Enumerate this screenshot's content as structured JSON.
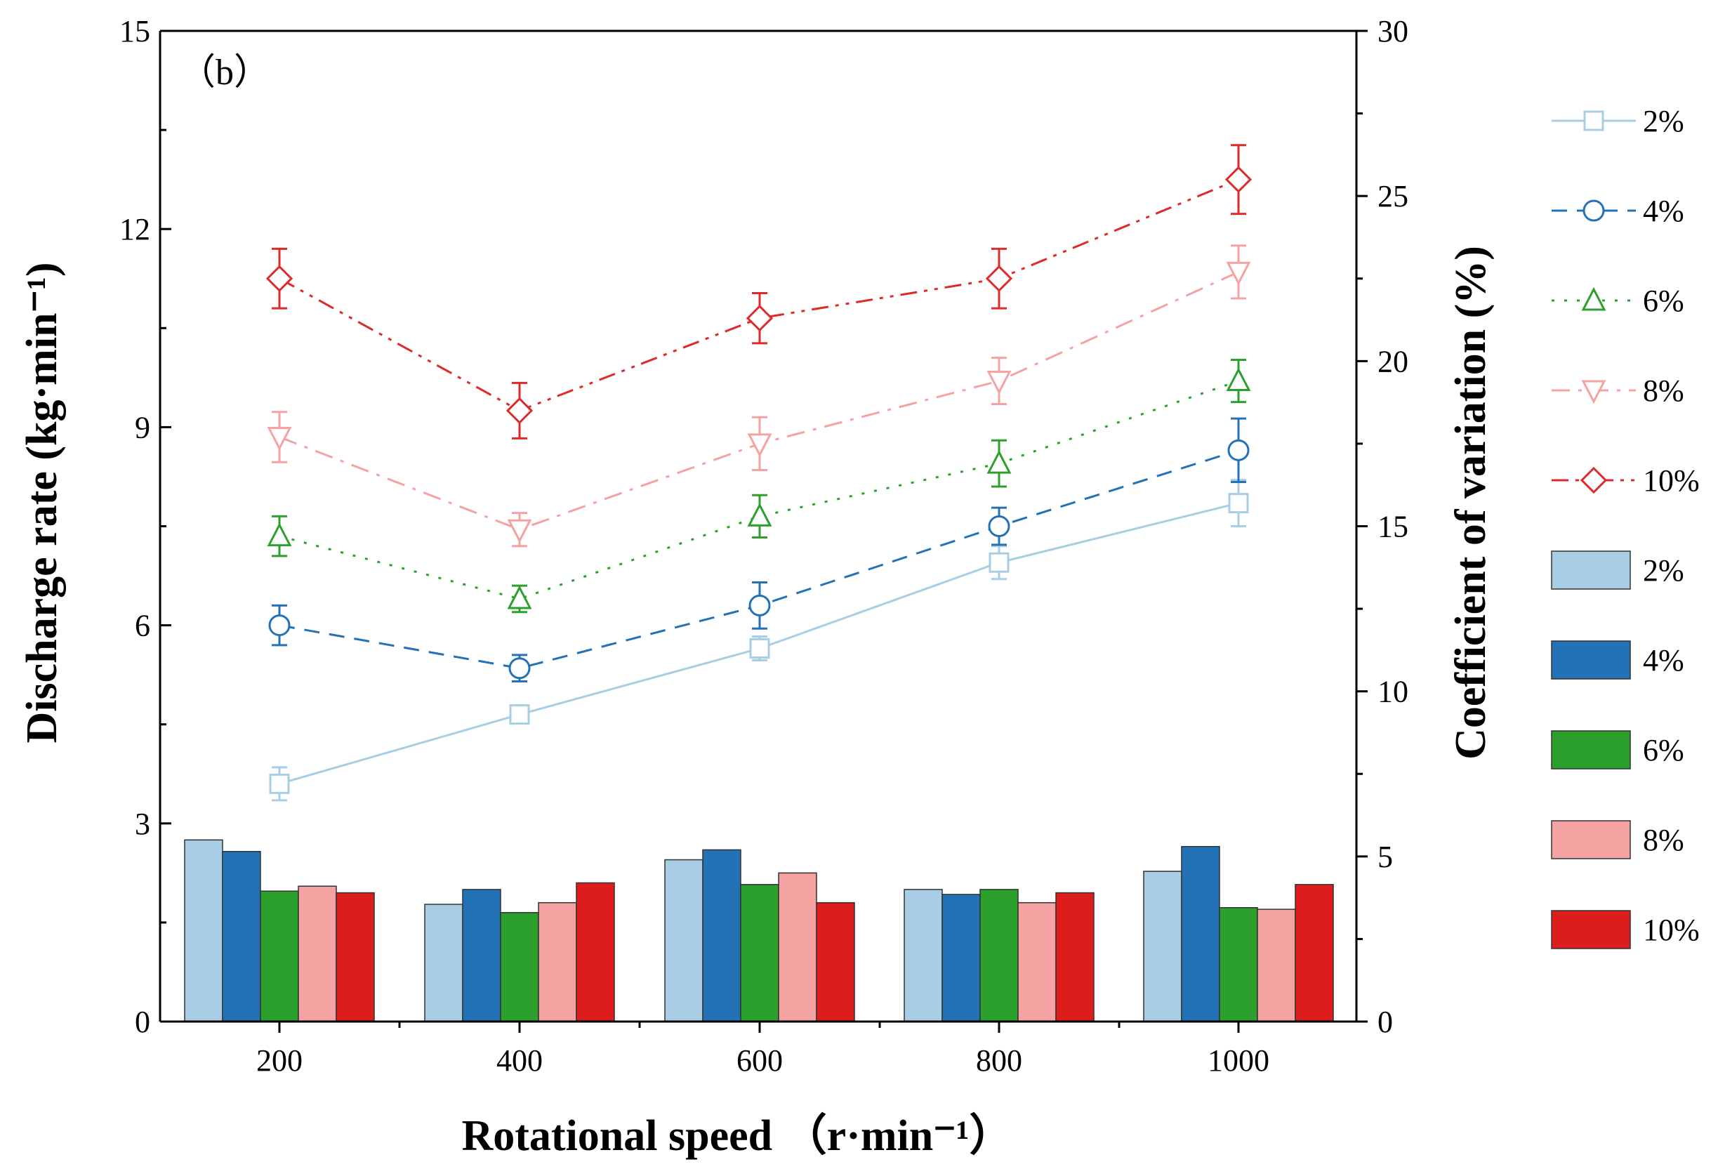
{
  "chart_data": {
    "type": "bar+line",
    "panel_label": "（b）",
    "xlabel": "Rotational speed （r·min⁻¹）",
    "ylabel_left": "Discharge rate (kg·min⁻¹)",
    "ylabel_right": "Coefficient of variation (%)",
    "categories": [
      "200",
      "400",
      "600",
      "800",
      "1000"
    ],
    "ylim_left": [
      0,
      15
    ],
    "yticks_left": [
      "0",
      "3",
      "6",
      "9",
      "12",
      "15"
    ],
    "ylim_right": [
      0,
      30
    ],
    "yticks_right": [
      "0",
      "5",
      "10",
      "15",
      "20",
      "25",
      "30"
    ],
    "grid": false,
    "legend_position": "right",
    "line_series": [
      {
        "name": "2%",
        "color": "#a8cde4",
        "marker": "square",
        "dash": "solid",
        "values": [
          3.6,
          4.65,
          5.65,
          6.95,
          7.85
        ],
        "errors": [
          0.25,
          0.12,
          0.18,
          0.25,
          0.35
        ]
      },
      {
        "name": "4%",
        "color": "#2472b6",
        "marker": "circle",
        "dash": "dashed",
        "values": [
          6.0,
          5.35,
          6.3,
          7.5,
          8.65
        ],
        "errors": [
          0.3,
          0.2,
          0.35,
          0.28,
          0.48
        ]
      },
      {
        "name": "6%",
        "color": "#2ca02c",
        "marker": "triangle-up",
        "dash": "dotted",
        "values": [
          7.35,
          6.4,
          7.65,
          8.45,
          9.7
        ],
        "errors": [
          0.3,
          0.2,
          0.32,
          0.35,
          0.32
        ]
      },
      {
        "name": "8%",
        "color": "#f4a3a2",
        "marker": "triangle-down",
        "dash": "dashdot",
        "values": [
          8.85,
          7.45,
          8.75,
          9.7,
          11.35
        ],
        "errors": [
          0.38,
          0.25,
          0.4,
          0.35,
          0.4
        ]
      },
      {
        "name": "10%",
        "color": "#dd2a2a",
        "marker": "diamond",
        "dash": "dashdotdot",
        "values": [
          11.25,
          9.25,
          10.65,
          11.25,
          12.75
        ],
        "errors": [
          0.45,
          0.42,
          0.38,
          0.45,
          0.52
        ]
      }
    ],
    "bar_series": [
      {
        "name": "2%",
        "color": "#a8cde4",
        "values": [
          5.5,
          3.55,
          4.9,
          4.0,
          4.55
        ]
      },
      {
        "name": "4%",
        "color": "#2472b6",
        "values": [
          5.15,
          4.0,
          5.2,
          3.85,
          5.3
        ]
      },
      {
        "name": "6%",
        "color": "#2ca02c",
        "values": [
          3.95,
          3.3,
          4.15,
          4.0,
          3.45
        ]
      },
      {
        "name": "8%",
        "color": "#f4a3a2",
        "values": [
          4.1,
          3.6,
          4.5,
          3.6,
          3.4
        ]
      },
      {
        "name": "10%",
        "color": "#dd1c1c",
        "values": [
          3.9,
          4.2,
          3.6,
          3.9,
          4.15
        ]
      }
    ]
  }
}
